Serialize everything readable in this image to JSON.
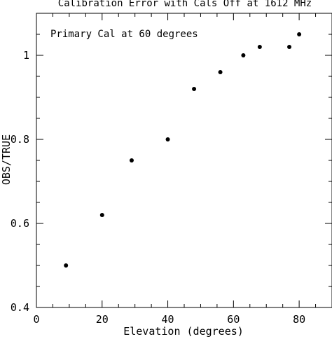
{
  "chart_data": {
    "type": "scatter",
    "title": "Calibration Error with Cals Off at 1612 MHz",
    "annotation": "Primary Cal at 60 degrees",
    "xlabel": "Elevation (degrees)",
    "ylabel": "OBS/TRUE",
    "xlim": [
      0,
      90
    ],
    "ylim": [
      0.4,
      1.1
    ],
    "xticks": [
      0,
      20,
      40,
      60,
      80
    ],
    "yticks": [
      0.4,
      0.6,
      0.8,
      1
    ],
    "xtick_labels": [
      "0",
      "20",
      "40",
      "60",
      "80"
    ],
    "ytick_labels": [
      "0.4",
      "0.6",
      "0.8",
      "1"
    ],
    "grid": false,
    "series": [
      {
        "x": [
          9,
          20,
          29,
          40,
          48,
          56,
          63,
          68,
          77,
          80
        ],
        "y": [
          0.5,
          0.62,
          0.75,
          0.8,
          0.92,
          0.96,
          1.0,
          1.02,
          1.02,
          1.05
        ]
      }
    ],
    "marker_color": "#000000"
  }
}
